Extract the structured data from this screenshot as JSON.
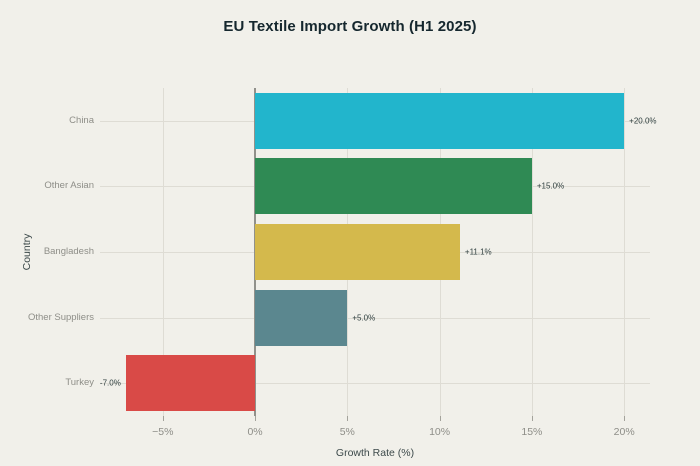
{
  "title": "EU Textile Import Growth (H1 2025)",
  "chart_data": {
    "type": "bar",
    "orientation": "horizontal",
    "title": "EU Textile Import Growth (H1 2025)",
    "xlabel": "Growth Rate (%)",
    "ylabel": "Country",
    "categories": [
      "China",
      "Other Asian",
      "Bangladesh",
      "Other Suppliers",
      "Turkey"
    ],
    "values": [
      20.0,
      15.0,
      11.1,
      5.0,
      -7.0
    ],
    "value_labels": [
      "+20.0%",
      "+15.0%",
      "+11.1%",
      "+5.0%",
      "-7.0%"
    ],
    "bar_colors": [
      "#22b5cc",
      "#2f8a54",
      "#d4b94c",
      "#5b878f",
      "#d94a47"
    ],
    "xlim": [
      -8.4,
      21.4
    ],
    "xticks": [
      -5,
      0,
      5,
      10,
      15,
      20
    ],
    "xtick_labels": [
      "−5%",
      "0%",
      "5%",
      "10%",
      "15%",
      "20%"
    ],
    "grid": true,
    "legend": "none",
    "colors": {
      "background": "#f1f0ea",
      "grid": "#dedcd4",
      "zero_line": "#91918b",
      "tick_mark": "#a3a29b",
      "title_text": "#15272e",
      "axis_label_text": "#3d4a4b",
      "tick_label_text": "#8e8e88",
      "category_label_text": "#8e8e88",
      "value_label_text": "#2e3e3e"
    }
  }
}
